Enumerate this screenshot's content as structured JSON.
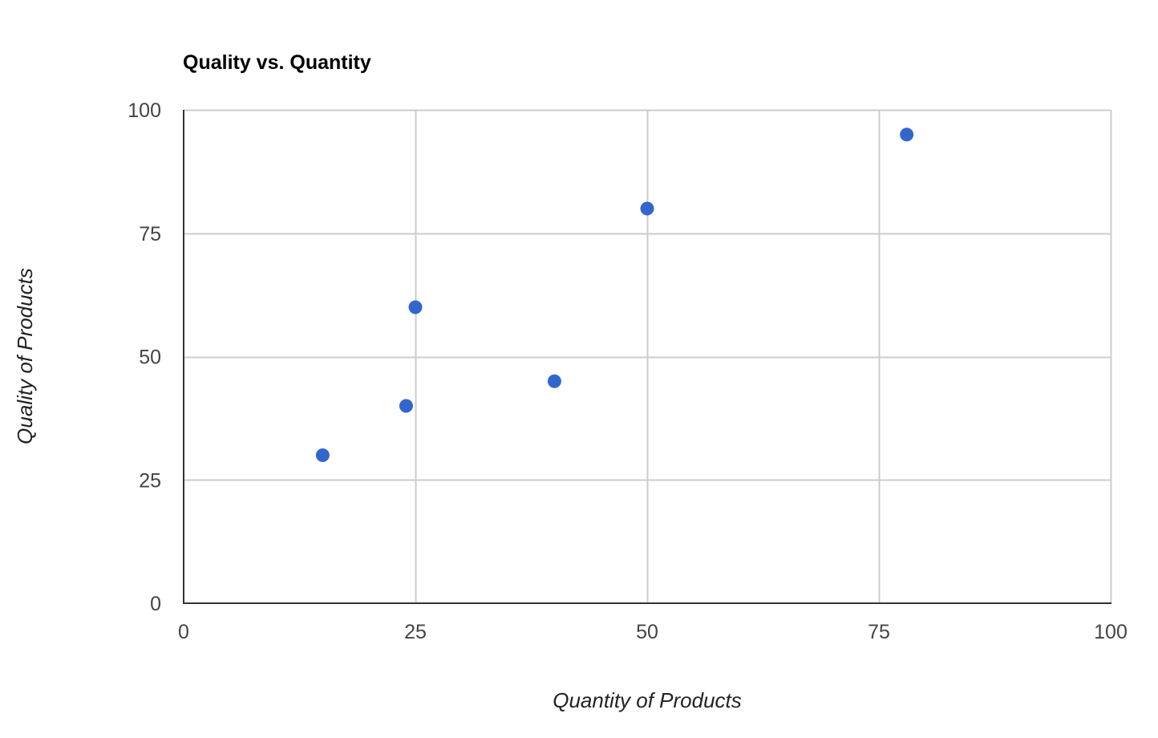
{
  "chart_data": {
    "type": "scatter",
    "title": "Quality vs. Quantity",
    "xlabel": "Quantity of Products",
    "ylabel": "Quality of Products",
    "xlim": [
      0,
      100
    ],
    "ylim": [
      0,
      100
    ],
    "xticks": [
      0,
      25,
      50,
      75,
      100
    ],
    "yticks": [
      0,
      25,
      50,
      75,
      100
    ],
    "grid": true,
    "legend": "none",
    "point_color": "#3366cc",
    "points": [
      {
        "x": 15,
        "y": 30
      },
      {
        "x": 24,
        "y": 40
      },
      {
        "x": 25,
        "y": 60
      },
      {
        "x": 40,
        "y": 45
      },
      {
        "x": 50,
        "y": 80
      },
      {
        "x": 78,
        "y": 95
      }
    ]
  }
}
